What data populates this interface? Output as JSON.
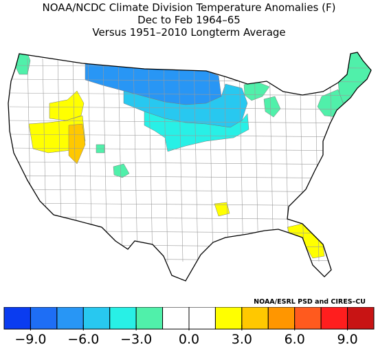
{
  "title": {
    "line1": "NOAA/NCDC Climate Division Temperature Anomalies (F)",
    "line2": "Dec to Feb 1964–65",
    "line3": "Versus 1951–2010 Longterm Average"
  },
  "credit": "NOAA/ESRL PSD and CIRES–CU",
  "colorbar": {
    "colors": [
      "#0a3cf0",
      "#1e6ef5",
      "#2896f5",
      "#28c8f0",
      "#28f0e6",
      "#50f0aa",
      "#ffffff",
      "#ffffff",
      "#ffff00",
      "#ffc800",
      "#ff9600",
      "#ff5a1e",
      "#ff1e1e",
      "#c81414"
    ],
    "bins": [
      -10.5,
      -9,
      -7.5,
      -6,
      -4.5,
      -3,
      -1.5,
      0,
      1.5,
      3,
      4.5,
      6,
      7.5,
      9,
      10.5
    ],
    "tick_values": [
      -9,
      -6,
      -3,
      0,
      3,
      6,
      9
    ],
    "tick_labels": [
      "−9.0",
      "−6.0",
      "−3.0",
      "0.0",
      "3.0",
      "6.0",
      "9.0"
    ]
  },
  "regions": [
    {
      "name": "northwest-washington",
      "anomaly": -2
    },
    {
      "name": "northern-plains-minnesota",
      "anomaly": -7
    },
    {
      "name": "upper-midwest",
      "anomaly": -5
    },
    {
      "name": "central-plains-midwest",
      "anomaly": -3.5
    },
    {
      "name": "michigan-upper",
      "anomaly": -2.5
    },
    {
      "name": "southern-michigan",
      "anomaly": -2.5
    },
    {
      "name": "colorado-spot",
      "anomaly": -2.5
    },
    {
      "name": "new-mexico-spot",
      "anomaly": -2.5
    },
    {
      "name": "northeast-new-england",
      "anomaly": -2.5
    },
    {
      "name": "northeast-interior",
      "anomaly": -2
    },
    {
      "name": "nevada-utah-idaho",
      "anomaly": 2
    },
    {
      "name": "utah-central",
      "anomaly": 3.5
    },
    {
      "name": "montana-idaho",
      "anomaly": 2
    },
    {
      "name": "arkansas-spot",
      "anomaly": 2
    },
    {
      "name": "florida",
      "anomaly": 2
    },
    {
      "name": "rest-of-conus",
      "anomaly": 0
    }
  ]
}
